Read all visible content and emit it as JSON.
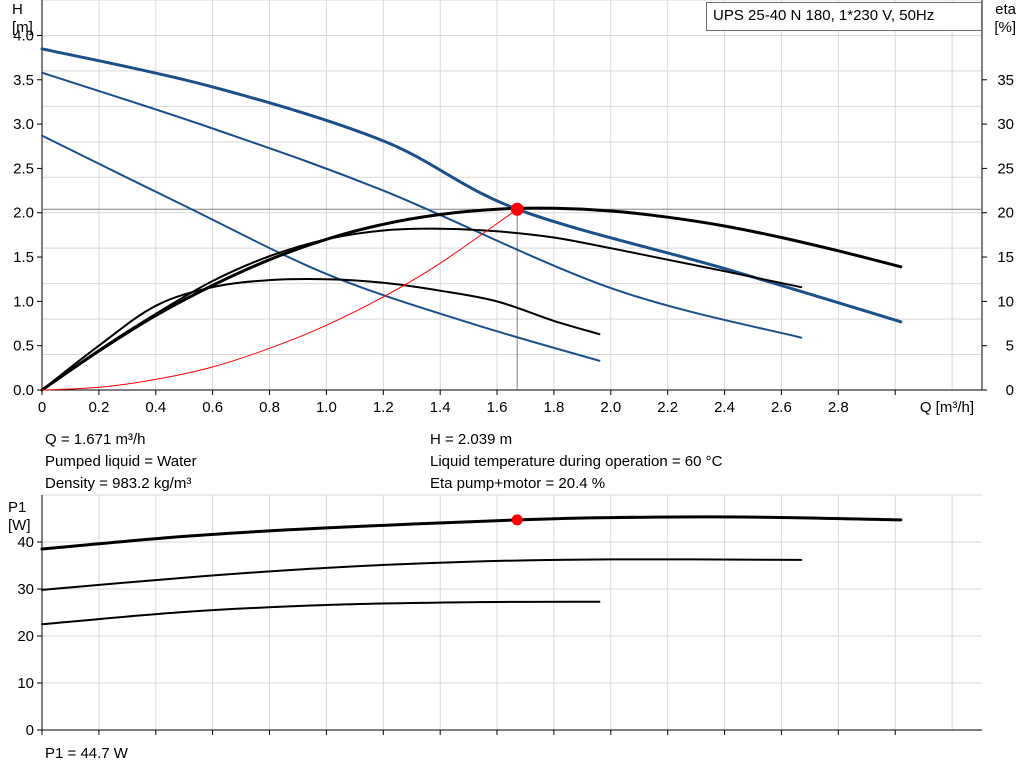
{
  "model_label": "UPS 25-40 N 180, 1*230 V, 50Hz",
  "info_left": [
    "Q = 1.671 m³/h",
    "Pumped liquid = Water",
    "Density = 983.2 kg/m³"
  ],
  "info_right": [
    "H = 2.039 m",
    "Liquid temperature during operation = 60 °C",
    "Eta pump+motor = 20.4 %"
  ],
  "p1_value_label": "P1 = 44.7 W",
  "colors": {
    "head": "#1a4f8a",
    "eta": "#000000",
    "system": "#ff0000",
    "duty_point": "#ff0000",
    "grid": "#d9d9d9",
    "crosshair": "#808080"
  },
  "chart_data": [
    {
      "type": "line",
      "ylabel_lines": [
        "H",
        "[m]"
      ],
      "y2label_lines": [
        "eta",
        "[%]"
      ],
      "xlabel": "Q [m³/h]",
      "xlim": [
        0,
        3.2
      ],
      "ylim": [
        0,
        4.4
      ],
      "y2lim": [
        0,
        44
      ],
      "x_ticks": [
        "0",
        "0.2",
        "0.4",
        "0.6",
        "0.8",
        "1.0",
        "1.2",
        "1.4",
        "1.6",
        "1.8",
        "2.0",
        "2.2",
        "2.4",
        "2.6",
        "2.8"
      ],
      "y_ticks": [
        "0.0",
        "0.5",
        "1.0",
        "1.5",
        "2.0",
        "2.5",
        "3.0",
        "3.5",
        "4.0"
      ],
      "y2_ticks": [
        "0",
        "5",
        "10",
        "15",
        "20",
        "25",
        "30",
        "35"
      ],
      "grid": true,
      "series": [
        {
          "role": "head",
          "width": 3,
          "x": [
            0,
            0.6,
            1.2,
            1.671,
            2.4,
            3.02
          ],
          "values": [
            3.85,
            3.42,
            2.81,
            2.04,
            1.37,
            0.77
          ]
        },
        {
          "role": "head",
          "width": 2,
          "x": [
            0,
            0.6,
            1.2,
            2.0,
            2.67
          ],
          "values": [
            3.58,
            2.95,
            2.25,
            1.15,
            0.59
          ]
        },
        {
          "role": "head",
          "width": 2,
          "x": [
            0,
            0.5,
            1.0,
            1.5,
            1.96
          ],
          "values": [
            2.87,
            2.08,
            1.31,
            0.76,
            0.33
          ]
        },
        {
          "role": "eta",
          "axis": "y2",
          "width": 3,
          "x": [
            0,
            0.2,
            0.4,
            0.6,
            0.8,
            1.0,
            1.2,
            1.4,
            1.6,
            1.8,
            2.0,
            2.2,
            2.4,
            2.6,
            2.8,
            3.02
          ],
          "values": [
            0,
            4.4,
            8.4,
            11.8,
            14.7,
            17.0,
            18.7,
            19.8,
            20.4,
            20.5,
            20.2,
            19.5,
            18.5,
            17.2,
            15.7,
            13.9
          ]
        },
        {
          "role": "eta",
          "axis": "y2",
          "width": 2,
          "x": [
            0,
            0.2,
            0.4,
            0.6,
            0.8,
            1.0,
            1.2,
            1.4,
            1.6,
            1.8,
            2.0,
            2.2,
            2.4,
            2.67
          ],
          "values": [
            0,
            4.5,
            8.6,
            12.3,
            15.1,
            17.0,
            18.0,
            18.2,
            17.9,
            17.2,
            16.0,
            14.7,
            13.4,
            11.6
          ]
        },
        {
          "role": "eta",
          "axis": "y2",
          "width": 2,
          "x": [
            0,
            0.2,
            0.4,
            0.6,
            0.8,
            1.0,
            1.2,
            1.4,
            1.6,
            1.8,
            1.96
          ],
          "values": [
            0,
            5.0,
            9.5,
            11.6,
            12.4,
            12.5,
            12.1,
            11.2,
            10.0,
            7.8,
            6.3
          ]
        },
        {
          "role": "system",
          "width": 1,
          "x": [
            0,
            0.2,
            0.4,
            0.6,
            0.8,
            1.0,
            1.2,
            1.4,
            1.671
          ],
          "values": [
            0,
            0.03,
            0.12,
            0.26,
            0.47,
            0.73,
            1.05,
            1.43,
            2.039
          ]
        }
      ],
      "duty_point": {
        "x": 1.671,
        "y": 2.039
      },
      "crosshair": {
        "x": 1.671,
        "y": 2.039
      }
    },
    {
      "type": "line",
      "ylabel_lines": [
        "P1",
        "[W]"
      ],
      "xlim": [
        0,
        3.2
      ],
      "ylim": [
        0,
        50
      ],
      "y_ticks": [
        "0",
        "10",
        "20",
        "30",
        "40"
      ],
      "grid": true,
      "series": [
        {
          "role": "power",
          "width": 3,
          "x": [
            0,
            0.5,
            1.0,
            1.671,
            2.0,
            2.5,
            3.02
          ],
          "values": [
            38.5,
            41.2,
            43.0,
            44.7,
            45.2,
            45.3,
            44.7
          ]
        },
        {
          "role": "power",
          "width": 2,
          "x": [
            0,
            0.5,
            1.0,
            1.5,
            2.0,
            2.67
          ],
          "values": [
            29.8,
            32.4,
            34.5,
            35.8,
            36.3,
            36.2
          ]
        },
        {
          "role": "power",
          "width": 2,
          "x": [
            0,
            0.5,
            1.0,
            1.5,
            1.96
          ],
          "values": [
            22.5,
            25.1,
            26.6,
            27.2,
            27.3
          ]
        }
      ],
      "duty_point": {
        "x": 1.671,
        "y": 44.7
      }
    }
  ]
}
